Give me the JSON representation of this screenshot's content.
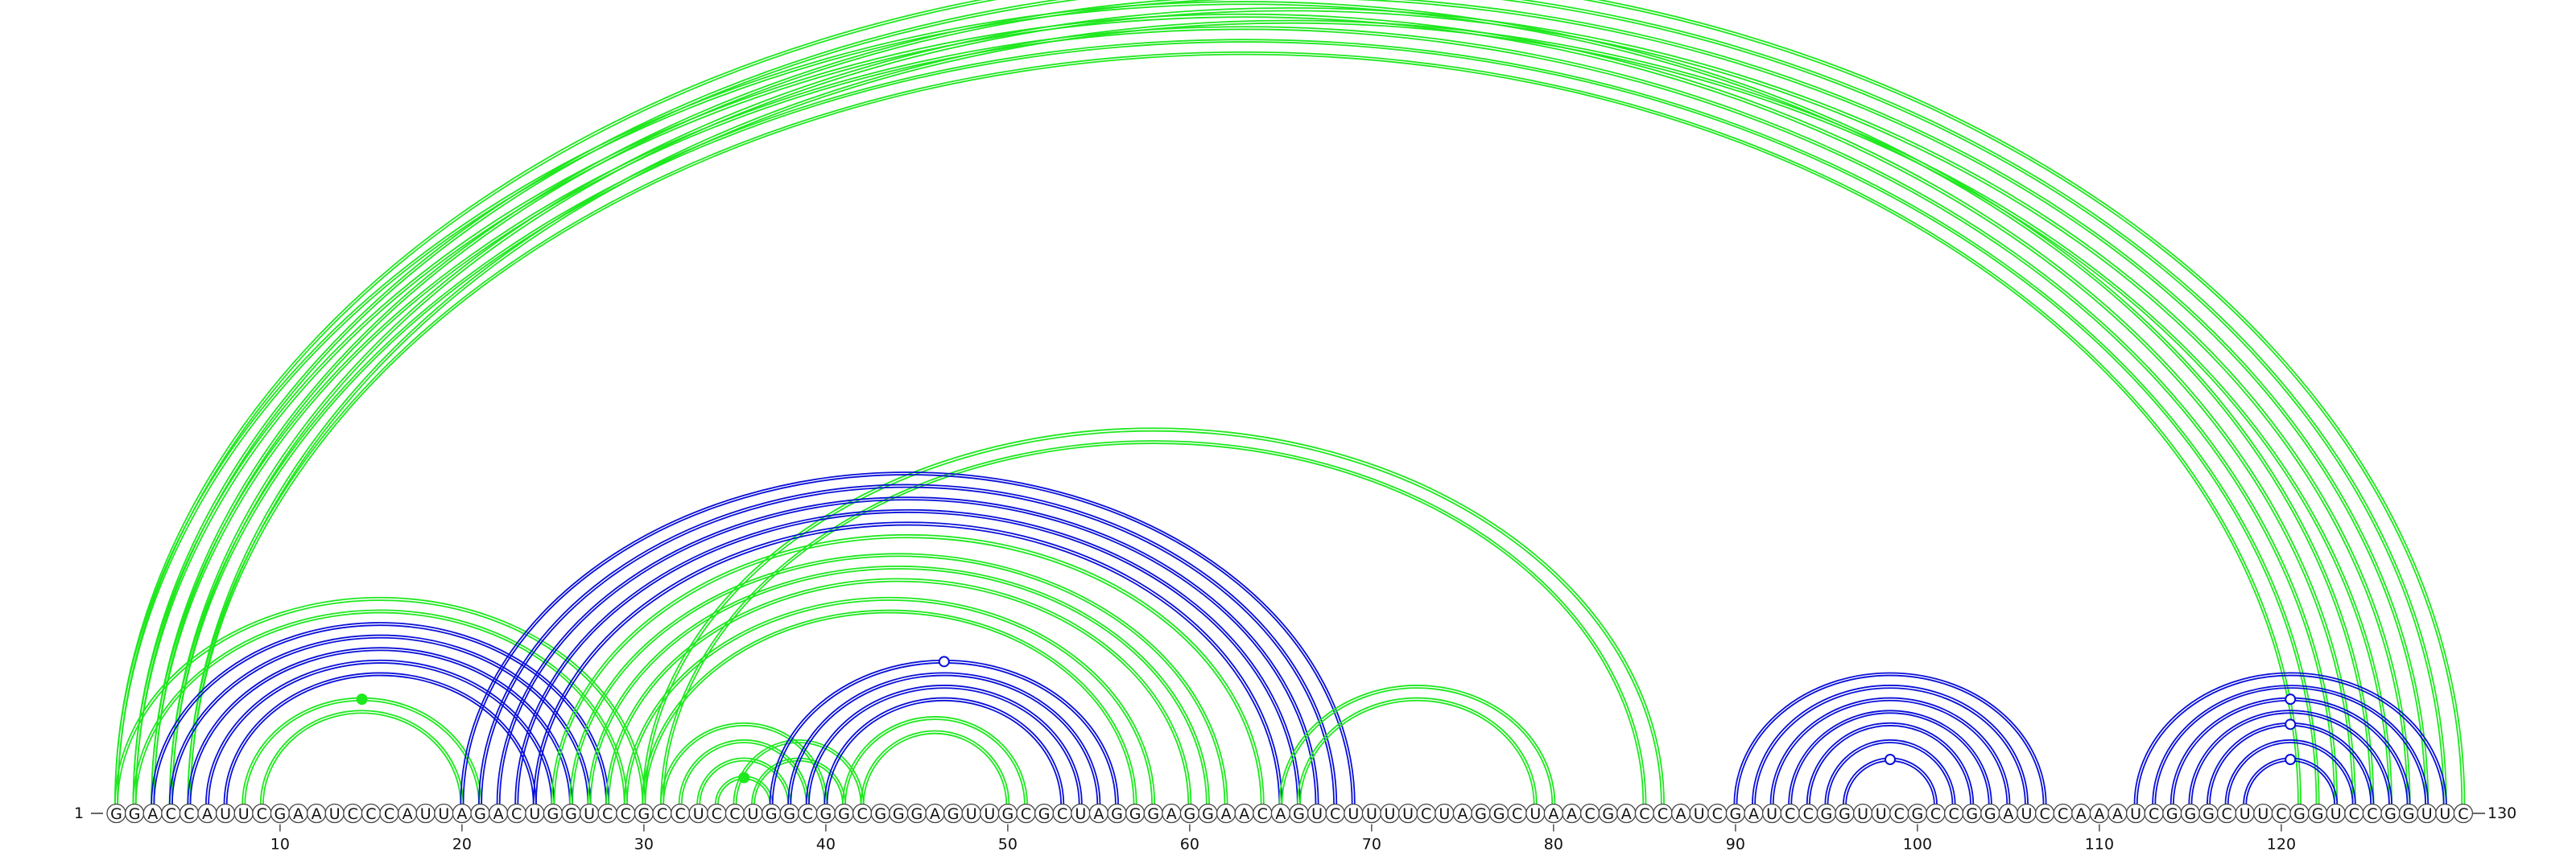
{
  "sequence": "GGACCAUUCGAAUCCCAUUAGACUGGUCCGCCUCCUGGCGGCGGGAGUUGCGCUAGGGAGGAACAGUCUUUUCUAGGCUAACGACCAUCGAUCCGGUUCGCCGGAUCCAAAUCGGGCUUCGGUCCGGUUC",
  "start_label": "1",
  "end_label": "130",
  "ticks": [
    10,
    20,
    30,
    40,
    50,
    60,
    70,
    80,
    90,
    100,
    110,
    120
  ],
  "colors": {
    "blue": "#0a10d8",
    "green": "#1ee81e"
  },
  "arcs": [
    {
      "color": "green",
      "i": 1,
      "j": 130,
      "double": true
    },
    {
      "color": "green",
      "i": 2,
      "j": 129,
      "double": true
    },
    {
      "color": "green",
      "i": 3,
      "j": 128,
      "double": true
    },
    {
      "color": "green",
      "i": 4,
      "j": 127,
      "double": true
    },
    {
      "color": "green",
      "i": 5,
      "j": 126,
      "double": true
    },
    {
      "color": "green",
      "i": 1,
      "j": 125,
      "double": true
    },
    {
      "color": "green",
      "i": 2,
      "j": 124,
      "double": true
    },
    {
      "color": "green",
      "i": 3,
      "j": 123,
      "double": true
    },
    {
      "color": "green",
      "i": 4,
      "j": 122,
      "double": true
    },
    {
      "color": "green",
      "i": 5,
      "j": 121,
      "double": true
    },
    {
      "color": "green",
      "i": 1,
      "j": 30,
      "double": true
    },
    {
      "color": "green",
      "i": 2,
      "j": 29,
      "double": true
    },
    {
      "color": "green",
      "i": 8,
      "j": 21,
      "double": true
    },
    {
      "color": "green",
      "i": 9,
      "j": 20,
      "double": true
    },
    {
      "color": "blue",
      "i": 3,
      "j": 28,
      "double": true
    },
    {
      "color": "blue",
      "i": 4,
      "j": 27,
      "double": true
    },
    {
      "color": "blue",
      "i": 5,
      "j": 26,
      "double": true
    },
    {
      "color": "blue",
      "i": 6,
      "j": 25,
      "double": true
    },
    {
      "color": "blue",
      "i": 7,
      "j": 24,
      "double": true
    },
    {
      "color": "green",
      "i": 30,
      "j": 86,
      "double": true
    },
    {
      "color": "green",
      "i": 31,
      "j": 85,
      "double": true
    },
    {
      "color": "blue",
      "i": 20,
      "j": 69,
      "double": true
    },
    {
      "color": "blue",
      "i": 21,
      "j": 68,
      "double": true
    },
    {
      "color": "blue",
      "i": 22,
      "j": 67,
      "double": true
    },
    {
      "color": "blue",
      "i": 23,
      "j": 66,
      "double": true
    },
    {
      "color": "blue",
      "i": 24,
      "j": 65,
      "double": true
    },
    {
      "color": "green",
      "i": 25,
      "j": 64,
      "double": true
    },
    {
      "color": "green",
      "i": 26,
      "j": 62,
      "double": true
    },
    {
      "color": "green",
      "i": 27,
      "j": 61,
      "double": true
    },
    {
      "color": "green",
      "i": 28,
      "j": 60,
      "double": true
    },
    {
      "color": "green",
      "i": 29,
      "j": 58,
      "double": true
    },
    {
      "color": "green",
      "i": 30,
      "j": 57,
      "double": true
    },
    {
      "color": "green",
      "i": 31,
      "j": 40,
      "double": true
    },
    {
      "color": "green",
      "i": 32,
      "j": 39,
      "double": true
    },
    {
      "color": "green",
      "i": 33,
      "j": 38,
      "double": true
    },
    {
      "color": "green",
      "i": 34,
      "j": 37,
      "double": true
    },
    {
      "color": "green",
      "i": 35,
      "j": 42,
      "double": true
    },
    {
      "color": "green",
      "i": 36,
      "j": 41,
      "double": true
    },
    {
      "color": "blue",
      "i": 37,
      "j": 56,
      "double": true
    },
    {
      "color": "blue",
      "i": 38,
      "j": 55,
      "double": true
    },
    {
      "color": "blue",
      "i": 39,
      "j": 54,
      "double": true
    },
    {
      "color": "blue",
      "i": 40,
      "j": 53,
      "double": true
    },
    {
      "color": "green",
      "i": 41,
      "j": 51,
      "double": true
    },
    {
      "color": "green",
      "i": 42,
      "j": 50,
      "double": true
    },
    {
      "color": "green",
      "i": 65,
      "j": 80,
      "double": true
    },
    {
      "color": "green",
      "i": 66,
      "j": 79,
      "double": true
    },
    {
      "color": "blue",
      "i": 90,
      "j": 107,
      "double": true
    },
    {
      "color": "blue",
      "i": 91,
      "j": 106,
      "double": true
    },
    {
      "color": "blue",
      "i": 92,
      "j": 105,
      "double": true
    },
    {
      "color": "blue",
      "i": 93,
      "j": 104,
      "double": true
    },
    {
      "color": "blue",
      "i": 94,
      "j": 103,
      "double": true
    },
    {
      "color": "blue",
      "i": 95,
      "j": 102,
      "double": true
    },
    {
      "color": "blue",
      "i": 96,
      "j": 101,
      "double": true
    },
    {
      "color": "blue",
      "i": 112,
      "j": 129,
      "double": true
    },
    {
      "color": "blue",
      "i": 113,
      "j": 128,
      "double": true
    },
    {
      "color": "blue",
      "i": 114,
      "j": 127,
      "double": true
    },
    {
      "color": "blue",
      "i": 115,
      "j": 126,
      "double": true
    },
    {
      "color": "blue",
      "i": 116,
      "j": 125,
      "double": true
    },
    {
      "color": "blue",
      "i": 117,
      "j": 124,
      "double": true
    },
    {
      "color": "blue",
      "i": 118,
      "j": 123,
      "double": true
    }
  ],
  "markers": [
    {
      "color": "green",
      "filled": false,
      "i": 1,
      "j": 130
    },
    {
      "color": "green",
      "filled": true,
      "i": 8,
      "j": 21
    },
    {
      "color": "blue",
      "filled": false,
      "i": 37,
      "j": 56
    },
    {
      "color": "green",
      "filled": true,
      "i": 34,
      "j": 37
    },
    {
      "color": "blue",
      "filled": false,
      "i": 96,
      "j": 101
    },
    {
      "color": "blue",
      "filled": false,
      "i": 114,
      "j": 127
    },
    {
      "color": "blue",
      "filled": false,
      "i": 116,
      "j": 125
    },
    {
      "color": "blue",
      "filled": false,
      "i": 118,
      "j": 123
    }
  ]
}
